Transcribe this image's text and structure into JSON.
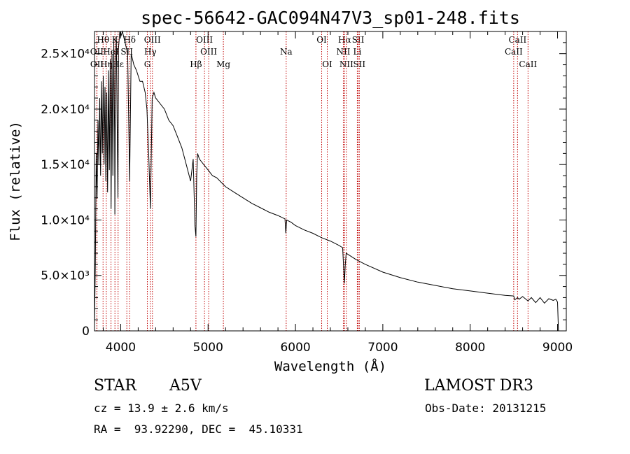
{
  "chart_data": {
    "type": "line",
    "title": "spec-56642-GAC094N47V3_sp01-248.fits",
    "xlabel": "Wavelength (Å)",
    "ylabel": "Flux (relative)",
    "xlim": [
      3700,
      9100
    ],
    "ylim": [
      0,
      27000
    ],
    "xticks": [
      {
        "value": 4000,
        "label": "4000"
      },
      {
        "value": 5000,
        "label": "5000"
      },
      {
        "value": 6000,
        "label": "6000"
      },
      {
        "value": 7000,
        "label": "7000"
      },
      {
        "value": 8000,
        "label": "8000"
      },
      {
        "value": 9000,
        "label": "9000"
      }
    ],
    "yticks": [
      {
        "value": 0,
        "label": "0"
      },
      {
        "value": 5000,
        "label": "5.0×10³"
      },
      {
        "value": 10000,
        "label": "1.0×10⁴"
      },
      {
        "value": 15000,
        "label": "1.5×10⁴"
      },
      {
        "value": 20000,
        "label": "2.0×10⁴"
      },
      {
        "value": 25000,
        "label": "2.5×10⁴"
      }
    ],
    "series": [
      {
        "name": "spectrum",
        "x": [
          3700,
          3710,
          3720,
          3730,
          3740,
          3750,
          3760,
          3770,
          3780,
          3790,
          3800,
          3810,
          3820,
          3830,
          3840,
          3850,
          3860,
          3870,
          3880,
          3890,
          3900,
          3910,
          3920,
          3930,
          3933,
          3940,
          3950,
          3960,
          3968,
          3975,
          3990,
          4000,
          4020,
          4050,
          4080,
          4102,
          4120,
          4150,
          4180,
          4200,
          4220,
          4250,
          4280,
          4300,
          4320,
          4340,
          4360,
          4380,
          4400,
          4450,
          4500,
          4550,
          4600,
          4650,
          4700,
          4750,
          4800,
          4830,
          4850,
          4861,
          4870,
          4880,
          4900,
          4950,
          5000,
          5050,
          5100,
          5150,
          5200,
          5300,
          5400,
          5500,
          5600,
          5700,
          5800,
          5880,
          5890,
          5900,
          5950,
          6000,
          6100,
          6200,
          6300,
          6400,
          6500,
          6540,
          6560,
          6570,
          6580,
          6600,
          6700,
          6800,
          7000,
          7200,
          7400,
          7600,
          7800,
          8000,
          8200,
          8400,
          8498,
          8510,
          8542,
          8560,
          8600,
          8662,
          8700,
          8750,
          8800,
          8850,
          8900,
          8950,
          8980,
          9000,
          9010
        ],
        "y": [
          500,
          6000,
          16000,
          12000,
          19000,
          15000,
          21000,
          14000,
          22500,
          16000,
          23000,
          15000,
          22000,
          13500,
          21500,
          12500,
          23500,
          14500,
          24500,
          11000,
          25000,
          14000,
          26000,
          18000,
          10500,
          24000,
          26500,
          18000,
          12000,
          25500,
          27500,
          26500,
          27000,
          26000,
          25000,
          13500,
          25000,
          24000,
          23500,
          23000,
          22500,
          22500,
          21500,
          20000,
          16000,
          11000,
          21000,
          21500,
          21000,
          20500,
          20000,
          19000,
          18500,
          17500,
          16500,
          15000,
          13500,
          15500,
          9500,
          8500,
          14000,
          16000,
          15500,
          15000,
          14500,
          14000,
          13800,
          13400,
          13000,
          12500,
          12000,
          11500,
          11100,
          10700,
          10400,
          10100,
          8800,
          10000,
          9800,
          9500,
          9100,
          8800,
          8400,
          8100,
          7700,
          7500,
          4300,
          5900,
          7000,
          6900,
          6400,
          6000,
          5300,
          4800,
          4400,
          4100,
          3800,
          3600,
          3400,
          3200,
          3150,
          2800,
          3000,
          2850,
          3100,
          2700,
          3000,
          2550,
          3000,
          2500,
          2900,
          2750,
          2850,
          2600,
          0
        ]
      }
    ],
    "lines": [
      {
        "name": "Hθ",
        "wave": 3798,
        "row": 0
      },
      {
        "name": "OII",
        "wave": 3727,
        "row": 1
      },
      {
        "name": "OII",
        "wave": 3728,
        "row": 2
      },
      {
        "name": "Hη",
        "wave": 3835,
        "row": 2
      },
      {
        "name": "HeI",
        "wave": 3889,
        "row": 1
      },
      {
        "name": "Hε",
        "wave": 3970,
        "row": 2
      },
      {
        "name": "K",
        "wave": 3934,
        "row": 0
      },
      {
        "name": "SII",
        "wave": 4070,
        "row": 1
      },
      {
        "name": "Hδ",
        "wave": 4102,
        "row": 0
      },
      {
        "name": "OIII",
        "wave": 4363,
        "row": 0
      },
      {
        "name": "Hγ",
        "wave": 4340,
        "row": 1
      },
      {
        "name": "G",
        "wave": 4305,
        "row": 2
      },
      {
        "name": "Hβ",
        "wave": 4861,
        "row": 2
      },
      {
        "name": "OIII",
        "wave": 4959,
        "row": 0
      },
      {
        "name": "OIII",
        "wave": 5007,
        "row": 1
      },
      {
        "name": "Mg",
        "wave": 5175,
        "row": 2
      },
      {
        "name": "Na",
        "wave": 5894,
        "row": 1
      },
      {
        "name": "OI",
        "wave": 6300,
        "row": 0
      },
      {
        "name": "OI",
        "wave": 6364,
        "row": 2
      },
      {
        "name": "Hα",
        "wave": 6563,
        "row": 0
      },
      {
        "name": "NII",
        "wave": 6548,
        "row": 1
      },
      {
        "name": "NII",
        "wave": 6583,
        "row": 2
      },
      {
        "name": "SII",
        "wave": 6717,
        "row": 0
      },
      {
        "name": "Li",
        "wave": 6708,
        "row": 1
      },
      {
        "name": "SII",
        "wave": 6731,
        "row": 2
      },
      {
        "name": "CaII",
        "wave": 8542,
        "row": 0
      },
      {
        "name": "CaII",
        "wave": 8498,
        "row": 1
      },
      {
        "name": "CaII",
        "wave": 8662,
        "row": 2
      }
    ]
  },
  "info": {
    "object_class": "STAR",
    "subclass": "A5V",
    "survey": "LAMOST DR3",
    "cz": "cz = 13.9 ± 2.6 km/s",
    "obs_date": "Obs-Date: 20131215",
    "coords": "RA =  93.92290, DEC =  45.10331"
  }
}
